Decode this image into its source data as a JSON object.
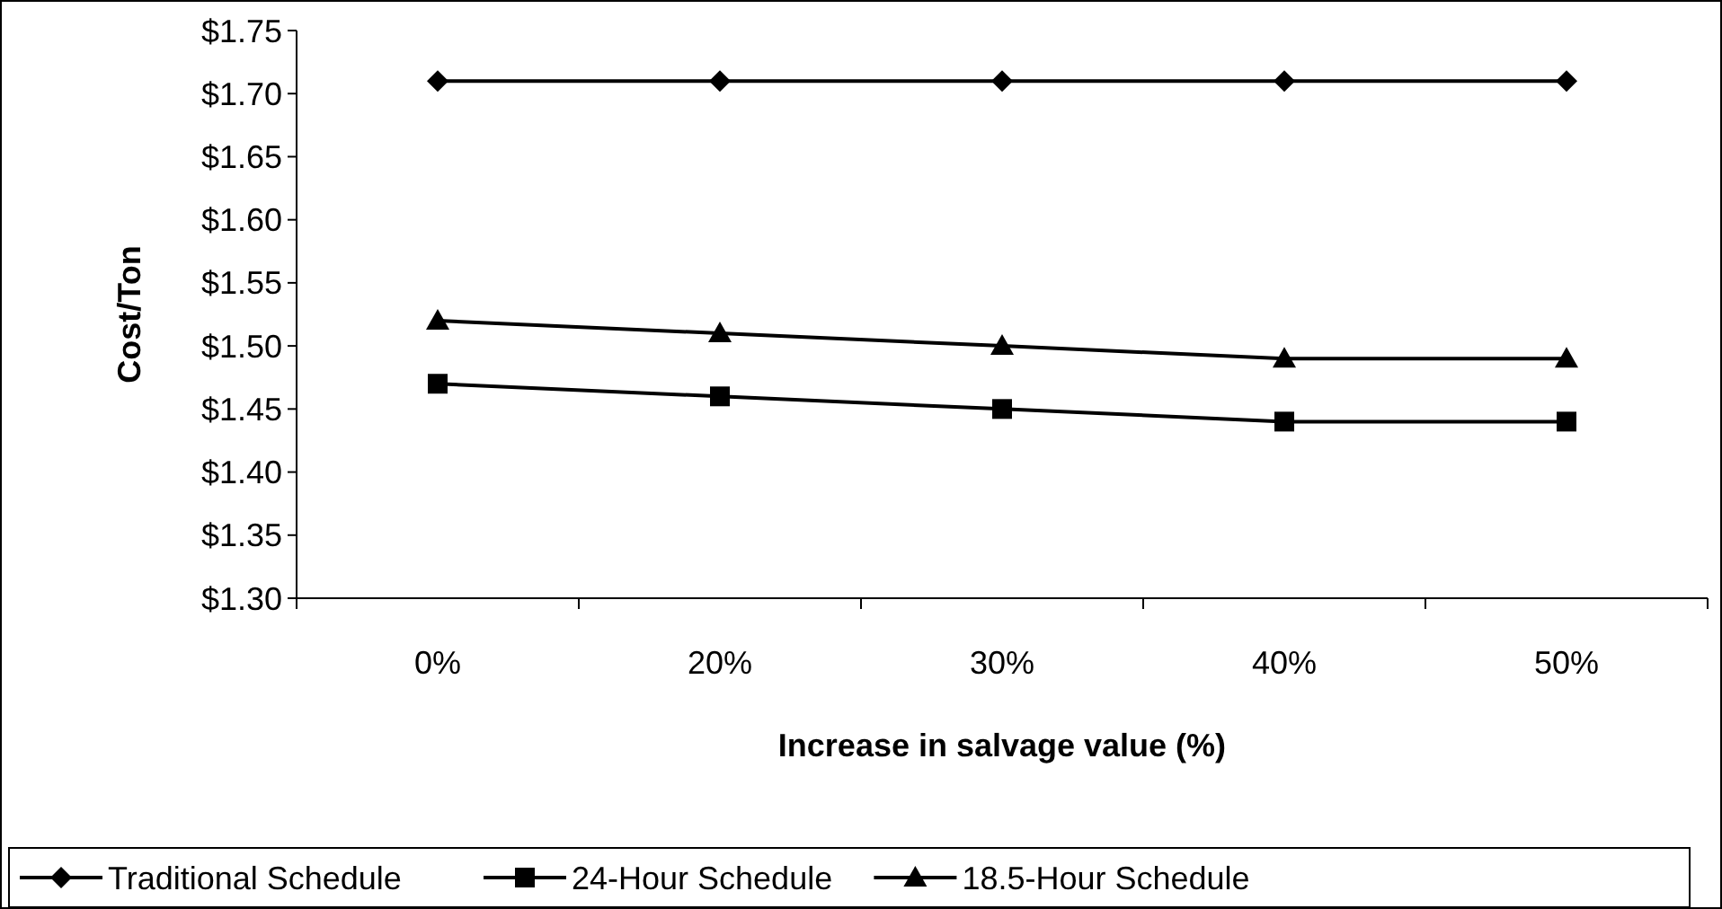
{
  "chart_data": {
    "type": "line",
    "xlabel": "Increase in salvage value (%)",
    "ylabel": "Cost/Ton",
    "categories": [
      "0%",
      "20%",
      "30%",
      "40%",
      "50%"
    ],
    "series": [
      {
        "name": "Traditional Schedule",
        "color": "#000000",
        "marker": "diamond",
        "values": [
          1.71,
          1.71,
          1.71,
          1.71,
          1.71
        ]
      },
      {
        "name": "24-Hour Schedule",
        "color": "#000000",
        "marker": "square",
        "values": [
          1.47,
          1.46,
          1.45,
          1.44,
          1.44
        ]
      },
      {
        "name": "18.5-Hour Schedule",
        "color": "#000000",
        "marker": "triangle",
        "values": [
          1.52,
          1.51,
          1.5,
          1.49,
          1.49
        ]
      }
    ],
    "ylim": [
      1.3,
      1.75
    ],
    "yticks": [
      {
        "value": 1.3,
        "label": "$1.30"
      },
      {
        "value": 1.35,
        "label": "$1.35"
      },
      {
        "value": 1.4,
        "label": "$1.40"
      },
      {
        "value": 1.45,
        "label": "$1.45"
      },
      {
        "value": 1.5,
        "label": "$1.50"
      },
      {
        "value": 1.55,
        "label": "$1.55"
      },
      {
        "value": 1.6,
        "label": "$1.60"
      },
      {
        "value": 1.65,
        "label": "$1.65"
      },
      {
        "value": 1.7,
        "label": "$1.70"
      },
      {
        "value": 1.75,
        "label": "$1.75"
      }
    ],
    "grid": false,
    "legend": "bottom",
    "line_style": "solid"
  }
}
